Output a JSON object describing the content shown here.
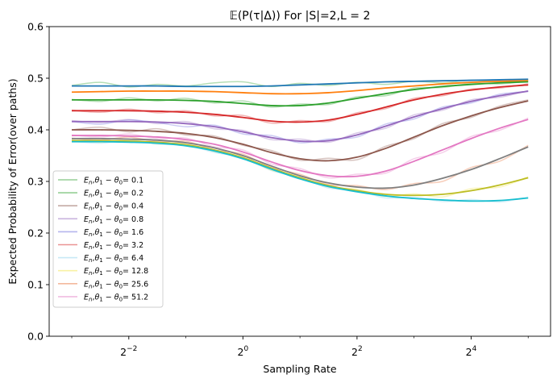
{
  "chart_data": {
    "type": "line",
    "title": "𝔼(P(τ|Δ)) For |S|=2,L = 2",
    "xlabel": "Sampling Rate",
    "ylabel": "Expected Probability of Error(over paths)",
    "x_scale": "log2",
    "xlim": [
      0.095,
      42
    ],
    "ylim": [
      0,
      0.6
    ],
    "x_ticks": [
      {
        "value": 0.25,
        "base": "2",
        "exp": "−2"
      },
      {
        "value": 1,
        "base": "2",
        "exp": "0"
      },
      {
        "value": 4,
        "base": "2",
        "exp": "2"
      },
      {
        "value": 16,
        "base": "2",
        "exp": "4"
      }
    ],
    "y_ticks": [
      0.0,
      0.1,
      0.2,
      0.3,
      0.4,
      0.5,
      0.6
    ],
    "y_tick_labels": [
      "0.0",
      "0.1",
      "0.2",
      "0.3",
      "0.4",
      "0.5",
      "0.6"
    ],
    "legend_position": "lower left",
    "legend": [
      {
        "label": "E_n,θ1 − θ0= 0.1",
        "color": "#2ca02c"
      },
      {
        "label": "E_n,θ1 − θ0= 0.2",
        "color": "#2ca02c"
      },
      {
        "label": "E_n,θ1 − θ0= 0.4",
        "color": "#8c564b"
      },
      {
        "label": "E_n,θ1 − θ0= 0.8",
        "color": "#9467bd"
      },
      {
        "label": "E_n,θ1 − θ0= 1.6",
        "color": "#6b6bde"
      },
      {
        "label": "E_n,θ1 − θ0= 3.2",
        "color": "#d62728"
      },
      {
        "label": "E_n,θ1 − θ0= 6.4",
        "color": "#8fd3ee"
      },
      {
        "label": "E_n,θ1 − θ0= 12.8",
        "color": "#f2e34a"
      },
      {
        "label": "E_n,θ1 − θ0= 25.6",
        "color": "#e8743b"
      },
      {
        "label": "E_n,θ1 − θ0= 51.2",
        "color": "#e377c2"
      }
    ],
    "x": [
      0.125,
      0.177,
      0.25,
      0.354,
      0.5,
      0.707,
      1,
      1.41,
      2,
      2.83,
      4,
      5.66,
      8,
      11.3,
      16,
      22.6,
      32
    ],
    "series": [
      {
        "color": "#1f77b4",
        "values": [
          0.485,
          0.485,
          0.485,
          0.485,
          0.484,
          0.484,
          0.484,
          0.485,
          0.487,
          0.489,
          0.491,
          0.493,
          0.494,
          0.495,
          0.496,
          0.497,
          0.498
        ]
      },
      {
        "color": "#ff7f0e",
        "values": [
          0.473,
          0.474,
          0.475,
          0.475,
          0.475,
          0.474,
          0.472,
          0.47,
          0.47,
          0.472,
          0.476,
          0.481,
          0.485,
          0.489,
          0.492,
          0.494,
          0.495
        ]
      },
      {
        "color": "#2ca02c",
        "values": [
          0.458,
          0.458,
          0.458,
          0.458,
          0.457,
          0.455,
          0.451,
          0.447,
          0.447,
          0.452,
          0.461,
          0.47,
          0.478,
          0.484,
          0.488,
          0.491,
          0.493
        ]
      },
      {
        "color": "#d62728",
        "values": [
          0.437,
          0.437,
          0.437,
          0.436,
          0.434,
          0.43,
          0.424,
          0.417,
          0.415,
          0.419,
          0.43,
          0.444,
          0.458,
          0.469,
          0.477,
          0.483,
          0.487
        ]
      },
      {
        "color": "#9467bd",
        "values": [
          0.416,
          0.416,
          0.416,
          0.415,
          0.412,
          0.406,
          0.396,
          0.385,
          0.378,
          0.379,
          0.39,
          0.407,
          0.425,
          0.441,
          0.455,
          0.466,
          0.475
        ]
      },
      {
        "color": "#8c564b",
        "values": [
          0.4,
          0.4,
          0.399,
          0.397,
          0.393,
          0.385,
          0.372,
          0.356,
          0.344,
          0.34,
          0.347,
          0.364,
          0.386,
          0.408,
          0.427,
          0.443,
          0.456
        ]
      },
      {
        "color": "#e377c2",
        "values": [
          0.389,
          0.389,
          0.388,
          0.386,
          0.381,
          0.372,
          0.357,
          0.338,
          0.321,
          0.311,
          0.31,
          0.32,
          0.339,
          0.361,
          0.383,
          0.403,
          0.42
        ]
      },
      {
        "color": "#7f7f7f",
        "values": [
          0.383,
          0.383,
          0.382,
          0.38,
          0.375,
          0.365,
          0.35,
          0.33,
          0.311,
          0.297,
          0.289,
          0.287,
          0.293,
          0.306,
          0.323,
          0.344,
          0.367
        ]
      },
      {
        "color": "#bcbd22",
        "values": [
          0.379,
          0.379,
          0.378,
          0.376,
          0.371,
          0.361,
          0.346,
          0.326,
          0.307,
          0.292,
          0.282,
          0.275,
          0.273,
          0.275,
          0.282,
          0.293,
          0.307
        ]
      },
      {
        "color": "#17becf",
        "values": [
          0.377,
          0.377,
          0.376,
          0.374,
          0.369,
          0.359,
          0.344,
          0.324,
          0.305,
          0.29,
          0.28,
          0.272,
          0.267,
          0.264,
          0.262,
          0.263,
          0.268
        ]
      }
    ],
    "noisy_series": [
      {
        "color": "#2ca02c",
        "values": [
          0.486,
          0.492,
          0.483,
          0.488,
          0.485,
          0.491,
          0.493,
          0.484,
          0.49,
          0.486,
          0.492,
          0.488,
          0.494,
          0.491,
          0.496,
          0.493,
          0.497
        ]
      },
      {
        "color": "#2ca02c",
        "values": [
          0.459,
          0.455,
          0.462,
          0.456,
          0.461,
          0.452,
          0.456,
          0.444,
          0.45,
          0.449,
          0.464,
          0.466,
          0.481,
          0.482,
          0.49,
          0.489,
          0.494
        ]
      },
      {
        "color": "#8c564b",
        "values": [
          0.4,
          0.405,
          0.396,
          0.402,
          0.39,
          0.388,
          0.37,
          0.36,
          0.341,
          0.345,
          0.342,
          0.368,
          0.383,
          0.412,
          0.424,
          0.446,
          0.458
        ]
      },
      {
        "color": "#9467bd",
        "values": [
          0.418,
          0.414,
          0.42,
          0.412,
          0.416,
          0.402,
          0.399,
          0.381,
          0.382,
          0.376,
          0.394,
          0.403,
          0.429,
          0.438,
          0.458,
          0.463,
          0.476
        ]
      },
      {
        "color": "#6b6bde",
        "values": [
          0.416,
          0.411,
          0.419,
          0.414,
          0.406,
          0.409,
          0.392,
          0.389,
          0.375,
          0.382,
          0.386,
          0.411,
          0.421,
          0.444,
          0.452,
          0.469,
          0.474
        ]
      },
      {
        "color": "#d62728",
        "values": [
          0.438,
          0.434,
          0.44,
          0.433,
          0.437,
          0.427,
          0.428,
          0.413,
          0.418,
          0.416,
          0.433,
          0.441,
          0.461,
          0.466,
          0.479,
          0.481,
          0.489
        ]
      },
      {
        "color": "#8fd3ee",
        "values": [
          0.378,
          0.374,
          0.38,
          0.372,
          0.371,
          0.356,
          0.346,
          0.321,
          0.308,
          0.287,
          0.283,
          0.268,
          0.27,
          0.261,
          0.265,
          0.26,
          0.27
        ]
      },
      {
        "color": "#f2e34a",
        "values": [
          0.38,
          0.376,
          0.381,
          0.373,
          0.374,
          0.358,
          0.349,
          0.322,
          0.31,
          0.289,
          0.285,
          0.271,
          0.276,
          0.27,
          0.286,
          0.289,
          0.309
        ]
      },
      {
        "color": "#e8743b",
        "values": [
          0.384,
          0.38,
          0.386,
          0.377,
          0.378,
          0.361,
          0.353,
          0.327,
          0.314,
          0.294,
          0.292,
          0.284,
          0.296,
          0.3,
          0.327,
          0.339,
          0.37
        ]
      },
      {
        "color": "#e377c2",
        "values": [
          0.39,
          0.386,
          0.392,
          0.383,
          0.384,
          0.367,
          0.361,
          0.334,
          0.325,
          0.307,
          0.314,
          0.316,
          0.344,
          0.356,
          0.387,
          0.399,
          0.423
        ]
      }
    ]
  }
}
